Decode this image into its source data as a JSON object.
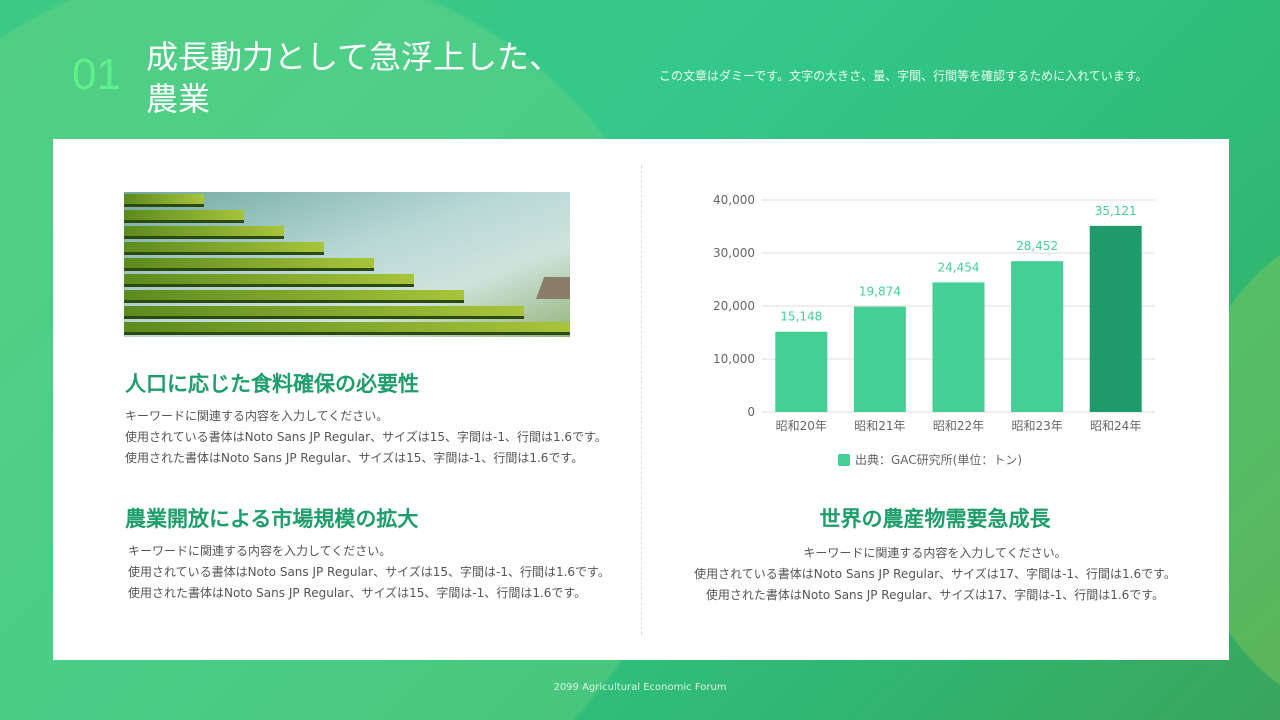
{
  "header": {
    "number": "01",
    "title_line1": "成長動力として急浮上した、",
    "title_line2": "農業",
    "subtitle": "この文章はダミーです。文字の大きさ、量、字間、行間等を確認するために入れています。"
  },
  "left": {
    "section1": {
      "heading": "人口に応じた食料確保の必要性",
      "lines": [
        "キーワードに関連する内容を入力してください。",
        "使用されている書体はNoto Sans JP Regular、サイズは15、字間は-1、行間は1.6です。",
        "使用された書体はNoto Sans JP Regular、サイズは15、字間は-1、行間は1.6です。"
      ]
    },
    "section2": {
      "heading": "農業開放による市場規模の拡大",
      "lines": [
        "キーワードに関連する内容を入力してください。",
        "使用されている書体はNoto Sans JP Regular、サイズは15、字間は-1、行間は1.6です。",
        "使用された書体はNoto Sans JP Regular、サイズは15、字間は-1、行間は1.6です。"
      ]
    }
  },
  "right": {
    "heading": "世界の農産物需要急成長",
    "lines": [
      "キーワードに関連する内容を入力してください。",
      "使用されている書体はNoto Sans JP Regular、サイズは17、字間は-1、行間は1.6です。",
      "使用された書体はNoto Sans JP Regular、サイズは17、字間は-1、行間は1.6です。"
    ]
  },
  "chart_data": {
    "type": "bar",
    "categories": [
      "昭和20年",
      "昭和21年",
      "昭和22年",
      "昭和23年",
      "昭和24年"
    ],
    "values": [
      15148,
      19874,
      24454,
      28452,
      35121
    ],
    "value_labels": [
      "15,148",
      "19,874",
      "24,454",
      "28,452",
      "35,121"
    ],
    "yticks": [
      "0",
      "10,000",
      "20,000",
      "30,000",
      "40,000"
    ],
    "ylim": [
      0,
      40000
    ],
    "grid": true,
    "legend": "出典：GAC研究所(単位：トン)",
    "legend_placement": "bottom",
    "colors": {
      "bar": "#45cf95",
      "highlight": "#1f9a6b",
      "label": "#45cf95"
    }
  },
  "footer": "2099 Agricultural Economic Forum"
}
